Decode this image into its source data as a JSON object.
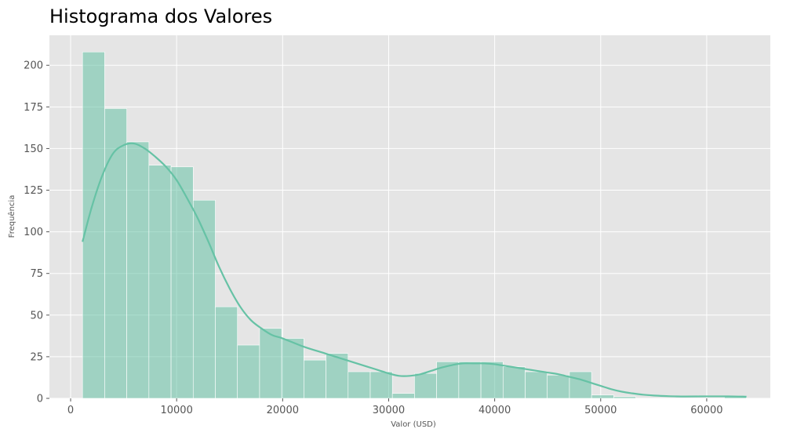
{
  "chart_data": {
    "type": "bar",
    "title": "Histograma dos Valores",
    "xlabel": "Valor (USD)",
    "ylabel": "Frequência",
    "xlim": [
      -2000,
      66000
    ],
    "ylim": [
      0,
      218
    ],
    "xticks": [
      0,
      10000,
      20000,
      30000,
      40000,
      50000,
      60000
    ],
    "xtick_labels": [
      "0",
      "10000",
      "20000",
      "30000",
      "40000",
      "50000",
      "60000"
    ],
    "yticks": [
      0,
      25,
      50,
      75,
      100,
      125,
      150,
      175,
      200
    ],
    "ytick_labels": [
      "0",
      "25",
      "50",
      "75",
      "100",
      "125",
      "150",
      "175",
      "200"
    ],
    "grid": true,
    "bin_edges": [
      1122,
      3210,
      5297,
      7385,
      9473,
      11561,
      13648,
      15736,
      17824,
      19911,
      21999,
      24087,
      26175,
      28262,
      30350,
      32438,
      34525,
      36613,
      38701,
      40789,
      42876,
      44964,
      47052,
      49139,
      51227,
      53315,
      55403,
      57490,
      59578,
      61666,
      63753
    ],
    "counts": [
      208,
      174,
      154,
      140,
      139,
      119,
      55,
      32,
      42,
      36,
      23,
      27,
      16,
      16,
      3,
      15,
      22,
      22,
      22,
      19,
      16,
      14,
      16,
      2,
      1,
      0,
      0,
      0,
      0,
      1
    ],
    "kde": {
      "x": [
        1122,
        2000,
        3000,
        4000,
        5000,
        6000,
        7000,
        8000,
        9000,
        10000,
        11000,
        12000,
        13000,
        14000,
        15000,
        16000,
        17000,
        18000,
        19000,
        20000,
        22000,
        24000,
        26000,
        28000,
        29000,
        30000,
        31000,
        32000,
        33000,
        34000,
        35000,
        36000,
        37000,
        38000,
        39000,
        40000,
        41000,
        42000,
        43000,
        44000,
        45000,
        46000,
        47000,
        48000,
        49000,
        50000,
        51000,
        52000,
        53000,
        54000,
        55000,
        56000,
        57000,
        58000,
        60000,
        62000,
        63753
      ],
      "y": [
        94,
        115,
        134,
        147,
        152,
        153,
        150,
        145,
        139,
        131,
        120,
        108,
        94,
        79,
        66,
        55,
        47,
        42,
        38,
        36,
        31,
        27,
        23,
        19,
        17,
        15,
        13.5,
        13.5,
        14.5,
        16.5,
        18.5,
        20,
        21,
        21,
        21,
        20.5,
        19.5,
        18.5,
        17.5,
        16.5,
        15.5,
        14.5,
        13,
        11.5,
        9.5,
        7.5,
        5.5,
        4,
        3,
        2.2,
        1.7,
        1.4,
        1.2,
        1.1,
        1.2,
        1.2,
        1
      ]
    },
    "colors": {
      "bar": "#66c2a5",
      "kde": "#66c2a5",
      "background": "#e5e5e5",
      "grid": "#ffffff"
    }
  }
}
